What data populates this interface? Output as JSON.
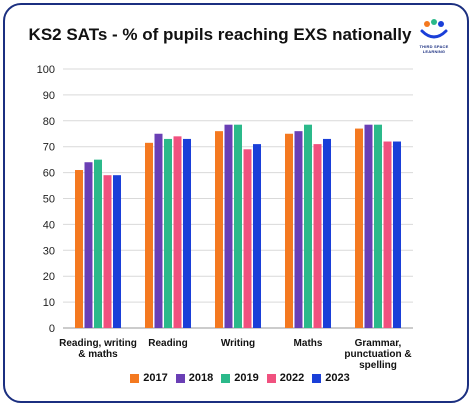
{
  "chart_data": {
    "type": "bar",
    "title": "KS2 SATs - % of pupils reaching EXS nationally",
    "categories": [
      [
        "Reading, writing",
        "& maths"
      ],
      [
        "Reading"
      ],
      [
        "Writing"
      ],
      [
        "Maths"
      ],
      [
        "Grammar,",
        "punctuation &",
        "spelling"
      ]
    ],
    "series": [
      {
        "name": "2017",
        "color": "#f47920",
        "values": [
          61,
          71.5,
          76,
          75,
          77
        ]
      },
      {
        "name": "2018",
        "color": "#6a3fb5",
        "values": [
          64,
          75,
          78.5,
          76,
          78.5
        ]
      },
      {
        "name": "2019",
        "color": "#2bb98a",
        "values": [
          65,
          73,
          78.5,
          78.5,
          78.5
        ]
      },
      {
        "name": "2022",
        "color": "#f0517f",
        "values": [
          59,
          74,
          69,
          71,
          72
        ]
      },
      {
        "name": "2023",
        "color": "#1a3fd8",
        "values": [
          59,
          73,
          71,
          73,
          72
        ]
      }
    ],
    "ylim": [
      0,
      100
    ],
    "yticks": [
      0,
      10,
      20,
      30,
      40,
      50,
      60,
      70,
      80,
      90,
      100
    ],
    "grid": true,
    "legend": "bottom"
  },
  "logo": {
    "text": "THIRD SPACE LEARNING",
    "colors": [
      "#f47920",
      "#2bb98a",
      "#1a3fd8"
    ]
  }
}
